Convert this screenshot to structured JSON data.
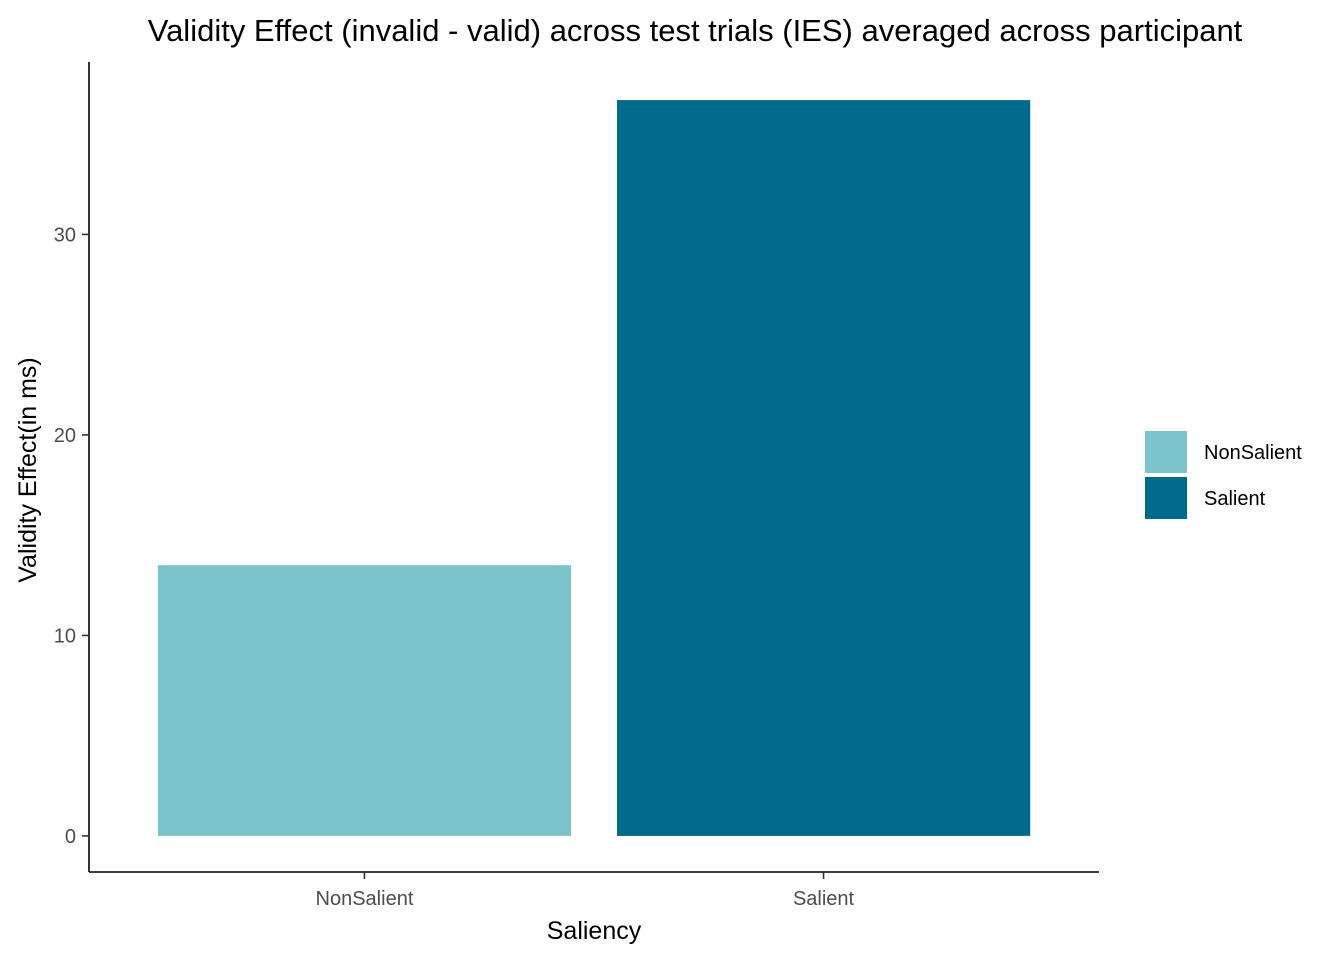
{
  "chart_data": {
    "type": "bar",
    "title": "Validity Effect (invalid - valid) across test trials (IES) averaged across participant",
    "xlabel": "Saliency",
    "ylabel": "Validity Effect(in ms)",
    "categories": [
      "NonSalient",
      "Salient"
    ],
    "values": [
      13.5,
      36.7
    ],
    "colors": [
      "#7CC3CC",
      "#006A8C"
    ],
    "ylim": [
      -1.8,
      38.6
    ],
    "yticks": [
      0,
      10,
      20,
      30
    ],
    "grid": false,
    "legend": {
      "position": "right",
      "title": "",
      "entries": [
        {
          "label": "NonSalient",
          "color": "#7CC3CC"
        },
        {
          "label": "Salient",
          "color": "#006A8C"
        }
      ]
    }
  }
}
